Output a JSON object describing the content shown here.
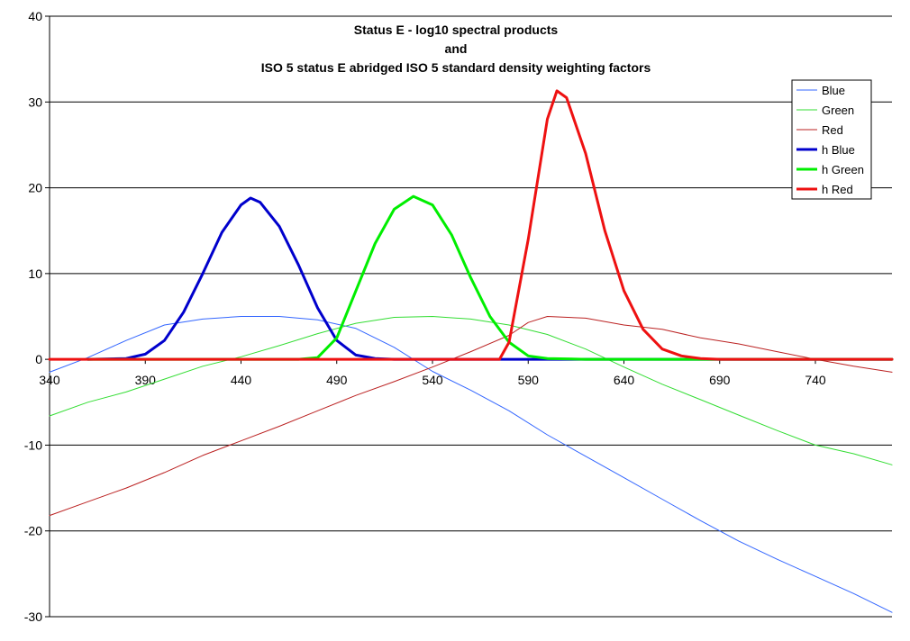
{
  "chart_data": {
    "type": "line",
    "title_lines": [
      "Status E - log10 spectral products",
      "and",
      "ISO 5 status E abridged ISO 5 standard density weighting factors"
    ],
    "xlabel": "",
    "ylabel": "",
    "xlim": [
      340,
      780
    ],
    "ylim": [
      -30,
      40
    ],
    "x_ticks": [
      "340",
      "390",
      "440",
      "490",
      "540",
      "590",
      "640",
      "690",
      "740"
    ],
    "y_ticks": [
      "40",
      "30",
      "20",
      "10",
      "0",
      "-10",
      "-20",
      "-30"
    ],
    "grid": "horizontal",
    "legend_position": "top-right",
    "series": [
      {
        "name": "Blue",
        "color": "#3366ff",
        "width": 1,
        "points": [
          [
            340,
            -1.5
          ],
          [
            360,
            0.2
          ],
          [
            380,
            2.2
          ],
          [
            400,
            4.0
          ],
          [
            420,
            4.7
          ],
          [
            440,
            5.0
          ],
          [
            460,
            5.0
          ],
          [
            480,
            4.6
          ],
          [
            500,
            3.6
          ],
          [
            520,
            1.4
          ],
          [
            540,
            -1.4
          ],
          [
            560,
            -3.6
          ],
          [
            580,
            -6.0
          ],
          [
            600,
            -8.8
          ],
          [
            620,
            -11.3
          ],
          [
            640,
            -13.8
          ],
          [
            660,
            -16.3
          ],
          [
            680,
            -18.8
          ],
          [
            700,
            -21.2
          ],
          [
            720,
            -23.3
          ],
          [
            740,
            -25.3
          ],
          [
            760,
            -27.3
          ],
          [
            780,
            -29.5
          ]
        ]
      },
      {
        "name": "Green",
        "color": "#33dd33",
        "width": 1,
        "points": [
          [
            340,
            -6.6
          ],
          [
            360,
            -5.0
          ],
          [
            380,
            -3.8
          ],
          [
            400,
            -2.3
          ],
          [
            420,
            -0.8
          ],
          [
            440,
            0.3
          ],
          [
            460,
            1.6
          ],
          [
            480,
            3.0
          ],
          [
            500,
            4.2
          ],
          [
            520,
            4.9
          ],
          [
            540,
            5.0
          ],
          [
            560,
            4.7
          ],
          [
            580,
            4.0
          ],
          [
            600,
            2.9
          ],
          [
            620,
            1.2
          ],
          [
            640,
            -0.9
          ],
          [
            660,
            -2.9
          ],
          [
            680,
            -4.7
          ],
          [
            700,
            -6.5
          ],
          [
            720,
            -8.3
          ],
          [
            740,
            -10.0
          ],
          [
            760,
            -11.0
          ],
          [
            780,
            -12.3
          ]
        ]
      },
      {
        "name": "Red",
        "color": "#bb2222",
        "width": 1,
        "points": [
          [
            340,
            -18.2
          ],
          [
            360,
            -16.6
          ],
          [
            380,
            -15.0
          ],
          [
            400,
            -13.2
          ],
          [
            420,
            -11.2
          ],
          [
            440,
            -9.5
          ],
          [
            460,
            -7.8
          ],
          [
            480,
            -6.0
          ],
          [
            500,
            -4.2
          ],
          [
            520,
            -2.6
          ],
          [
            540,
            -0.9
          ],
          [
            560,
            0.9
          ],
          [
            580,
            2.8
          ],
          [
            590,
            4.3
          ],
          [
            600,
            5.0
          ],
          [
            620,
            4.8
          ],
          [
            640,
            4.0
          ],
          [
            660,
            3.5
          ],
          [
            680,
            2.5
          ],
          [
            700,
            1.8
          ],
          [
            720,
            0.9
          ],
          [
            740,
            0.0
          ],
          [
            760,
            -0.8
          ],
          [
            780,
            -1.5
          ]
        ]
      },
      {
        "name": "h Blue",
        "color": "#0000cc",
        "width": 3,
        "points": [
          [
            360,
            0
          ],
          [
            380,
            0.1
          ],
          [
            390,
            0.6
          ],
          [
            400,
            2.2
          ],
          [
            410,
            5.5
          ],
          [
            420,
            10.0
          ],
          [
            430,
            14.8
          ],
          [
            440,
            18.0
          ],
          [
            445,
            18.8
          ],
          [
            450,
            18.3
          ],
          [
            460,
            15.5
          ],
          [
            470,
            11.0
          ],
          [
            480,
            6.0
          ],
          [
            490,
            2.2
          ],
          [
            500,
            0.5
          ],
          [
            510,
            0.1
          ],
          [
            520,
            0
          ],
          [
            780,
            0
          ]
        ]
      },
      {
        "name": "h Green",
        "color": "#00ee00",
        "width": 3,
        "points": [
          [
            360,
            0
          ],
          [
            470,
            0
          ],
          [
            480,
            0.2
          ],
          [
            490,
            2.5
          ],
          [
            500,
            8.0
          ],
          [
            510,
            13.5
          ],
          [
            520,
            17.5
          ],
          [
            530,
            19.0
          ],
          [
            540,
            18.0
          ],
          [
            550,
            14.5
          ],
          [
            560,
            9.5
          ],
          [
            570,
            5.0
          ],
          [
            580,
            2.0
          ],
          [
            590,
            0.4
          ],
          [
            600,
            0.1
          ],
          [
            620,
            0
          ],
          [
            780,
            0
          ]
        ]
      },
      {
        "name": "h Red",
        "color": "#ee1111",
        "width": 3,
        "points": [
          [
            340,
            0
          ],
          [
            575,
            0
          ],
          [
            580,
            2.0
          ],
          [
            590,
            14.0
          ],
          [
            600,
            28.0
          ],
          [
            605,
            31.3
          ],
          [
            610,
            30.5
          ],
          [
            620,
            24.0
          ],
          [
            630,
            15.0
          ],
          [
            640,
            8.0
          ],
          [
            650,
            3.5
          ],
          [
            660,
            1.2
          ],
          [
            670,
            0.4
          ],
          [
            680,
            0.1
          ],
          [
            690,
            0
          ],
          [
            780,
            0
          ]
        ]
      }
    ]
  }
}
